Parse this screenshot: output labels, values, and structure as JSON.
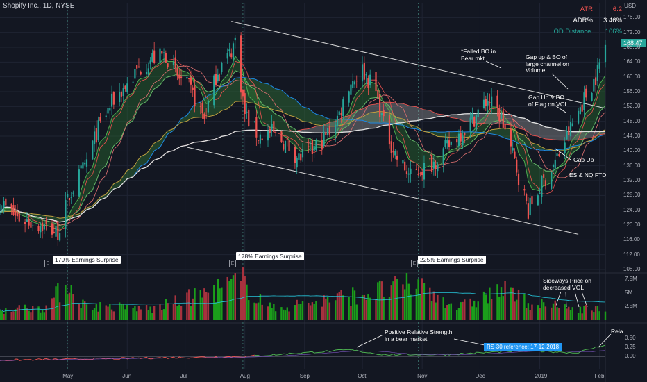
{
  "header": {
    "symbol_title": "Shopify Inc., 1D, NYSE",
    "currency": "USD"
  },
  "stats": [
    {
      "label": "ATR",
      "value": "6.2",
      "color": "#ef5350"
    },
    {
      "label": "ADR%",
      "value": "3.46%",
      "color": "#ffffff"
    },
    {
      "label": "LOD Distance.",
      "value": "106%",
      "color": "#26a69a"
    }
  ],
  "last_price": "168.47",
  "annotations": {
    "failed_bo": "*Failed BO in Bear mkt",
    "gap_up_bo_channel": "Gap up & BO of large channel on Volume",
    "gap_up_bo_flag": "Gap Up & BO of Flag on VOL",
    "gap_up": "Gap Up",
    "ftd": "ES & NQ FTD",
    "sideways": "Sideways Price on decreased VOL",
    "positive_rs": "Positive Relative Strength in a bear market",
    "rs_reference": "RS-30 reference: 17-12-2018",
    "rela": "Rela"
  },
  "earnings": [
    {
      "label": "179% Earnings Surprise",
      "date": "2018-05-01"
    },
    {
      "label": "178% Earnings Surprise",
      "date": "2018-07-31"
    },
    {
      "label": "225% Earnings Surprise",
      "date": "2018-10-30"
    }
  ],
  "colors": {
    "up": "#26a69a",
    "down": "#ef5350",
    "vol_up": "#1b9e1b",
    "vol_down": "#a8323e",
    "trendline": "#d8d8d8"
  },
  "chart_data": {
    "type": "candlestick",
    "price_axis": {
      "range": [
        108,
        180
      ],
      "ticks": [
        "176.00",
        "172.00",
        "168.00",
        "164.00",
        "160.00",
        "156.00",
        "152.00",
        "148.00",
        "144.00",
        "140.00",
        "136.00",
        "132.00",
        "128.00",
        "124.00",
        "120.00",
        "116.00",
        "112.00",
        "108.00"
      ]
    },
    "volume_axis": {
      "range": [
        0,
        8
      ],
      "unit": "M",
      "ticks": [
        "7.5M",
        "5M",
        "2.5M"
      ]
    },
    "rs_axis": {
      "range": [
        -0.35,
        0.85
      ],
      "ticks": [
        "0.50",
        "0.25",
        "0.00"
      ]
    },
    "x_ticks": [
      {
        "label": "May",
        "date": "2018-05-01"
      },
      {
        "label": "Jun",
        "date": "2018-06-01"
      },
      {
        "label": "Jul",
        "date": "2018-07-01"
      },
      {
        "label": "Aug",
        "date": "2018-08-01"
      },
      {
        "label": "Sep",
        "date": "2018-09-01"
      },
      {
        "label": "Oct",
        "date": "2018-10-01"
      },
      {
        "label": "Nov",
        "date": "2018-11-01"
      },
      {
        "label": "Dec",
        "date": "2018-12-01"
      },
      {
        "label": "2019",
        "date": "2019-01-01"
      },
      {
        "label": "Feb",
        "date": "2019-02-01"
      }
    ],
    "date_range": [
      "2018-03-27",
      "2019-02-04"
    ],
    "close_path": [
      [
        "2018-03-27",
        126
      ],
      [
        "2018-04-05",
        122
      ],
      [
        "2018-04-17",
        120
      ],
      [
        "2018-04-26",
        118
      ],
      [
        "2018-05-02",
        128
      ],
      [
        "2018-05-10",
        136
      ],
      [
        "2018-05-17",
        146
      ],
      [
        "2018-05-25",
        154
      ],
      [
        "2018-06-01",
        158
      ],
      [
        "2018-06-07",
        162
      ],
      [
        "2018-06-14",
        165
      ],
      [
        "2018-06-21",
        166
      ],
      [
        "2018-06-27",
        160
      ],
      [
        "2018-07-03",
        157
      ],
      [
        "2018-07-11",
        149
      ],
      [
        "2018-07-18",
        162
      ],
      [
        "2018-07-24",
        166
      ],
      [
        "2018-07-27",
        170
      ],
      [
        "2018-08-01",
        150
      ],
      [
        "2018-08-08",
        144
      ],
      [
        "2018-08-15",
        145
      ],
      [
        "2018-08-22",
        142
      ],
      [
        "2018-08-29",
        138
      ],
      [
        "2018-09-05",
        140
      ],
      [
        "2018-09-12",
        144
      ],
      [
        "2018-09-19",
        150
      ],
      [
        "2018-09-24",
        158
      ],
      [
        "2018-10-01",
        162
      ],
      [
        "2018-10-08",
        156
      ],
      [
        "2018-10-12",
        147
      ],
      [
        "2018-10-19",
        138
      ],
      [
        "2018-10-26",
        133
      ],
      [
        "2018-10-31",
        135
      ],
      [
        "2018-11-07",
        137
      ],
      [
        "2018-11-14",
        141
      ],
      [
        "2018-11-21",
        145
      ],
      [
        "2018-11-28",
        149
      ],
      [
        "2018-12-05",
        154
      ],
      [
        "2018-12-12",
        149
      ],
      [
        "2018-12-19",
        137
      ],
      [
        "2018-12-26",
        124
      ],
      [
        "2019-01-02",
        131
      ],
      [
        "2019-01-09",
        137
      ],
      [
        "2019-01-16",
        145
      ],
      [
        "2019-01-23",
        153
      ],
      [
        "2019-01-30",
        160
      ],
      [
        "2019-02-04",
        168.47
      ]
    ],
    "volume_path": [
      [
        "2018-03-27",
        2
      ],
      [
        "2018-04-20",
        2.6
      ],
      [
        "2018-05-01",
        7.2
      ],
      [
        "2018-05-10",
        2.8
      ],
      [
        "2018-06-15",
        2.2
      ],
      [
        "2018-07-31",
        7.4
      ],
      [
        "2018-08-15",
        2.2
      ],
      [
        "2018-10-30",
        6.8
      ],
      [
        "2018-11-20",
        2.4
      ],
      [
        "2018-12-12",
        5.8
      ],
      [
        "2018-12-28",
        3.2
      ],
      [
        "2019-01-15",
        2.4
      ],
      [
        "2019-02-04",
        2.0
      ]
    ],
    "rs_path": [
      [
        "2018-03-27",
        -0.1
      ],
      [
        "2018-06-01",
        -0.05
      ],
      [
        "2018-08-01",
        0.0
      ],
      [
        "2018-09-24",
        0.18
      ],
      [
        "2018-10-12",
        0.05
      ],
      [
        "2018-11-15",
        0.06
      ],
      [
        "2018-12-17",
        0.14
      ],
      [
        "2018-12-26",
        0.16
      ],
      [
        "2019-01-20",
        0.1
      ],
      [
        "2019-02-04",
        0.32
      ]
    ]
  }
}
